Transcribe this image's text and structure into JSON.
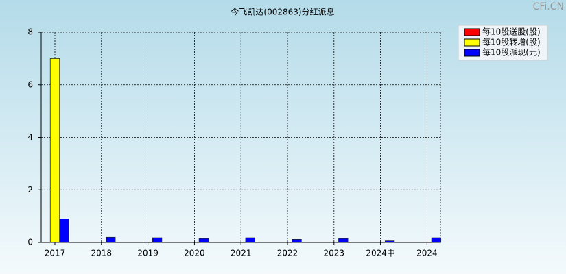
{
  "chart_data": {
    "type": "bar",
    "title": "今飞凯达(002863)分红派息",
    "watermark": "CFi.CN",
    "categories": [
      "2017",
      "2018",
      "2019",
      "2020",
      "2021",
      "2022",
      "2023",
      "2024中",
      "2024"
    ],
    "series": [
      {
        "name": "每10股送股(股)",
        "color": "#ff0000",
        "values": [
          0,
          0,
          0,
          0,
          0,
          0,
          0,
          0,
          0
        ]
      },
      {
        "name": "每10股转增(股)",
        "color": "#ffff00",
        "values": [
          7,
          0,
          0,
          0,
          0,
          0,
          0,
          0,
          0
        ]
      },
      {
        "name": "每10股派现(元)",
        "color": "#0000ff",
        "values": [
          0.9,
          0.2,
          0.18,
          0.15,
          0.18,
          0.12,
          0.15,
          0.06,
          0.18
        ]
      }
    ],
    "ylim": [
      0,
      8
    ],
    "yticks": [
      0,
      2,
      4,
      6,
      8
    ],
    "grid": true,
    "legend": "top-right"
  }
}
